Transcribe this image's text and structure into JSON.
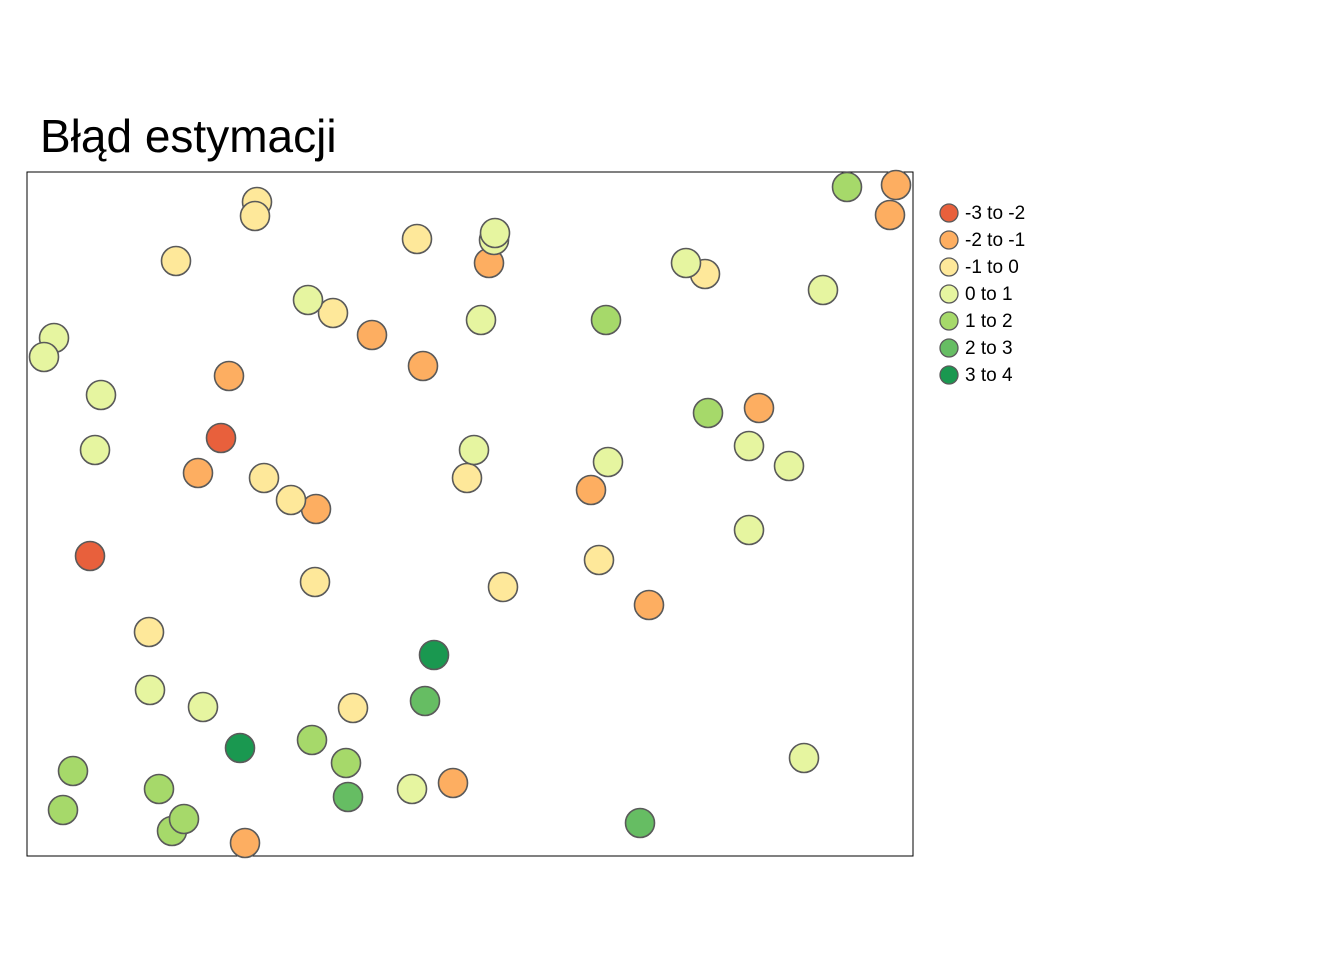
{
  "chart_data": {
    "type": "scatter",
    "title": "Błąd estymacji",
    "xlim": [
      0,
      886
    ],
    "ylim": [
      0,
      684
    ],
    "series": [
      {
        "name": "-3 to -2",
        "color": "#e8603c",
        "x": [
          194,
          63
        ],
        "y": [
          418,
          300
        ]
      },
      {
        "name": "-2 to -1",
        "color": "#fdae61",
        "x": [
          869,
          863,
          462,
          345,
          396,
          202,
          732,
          171,
          564,
          289,
          622,
          426,
          218
        ],
        "y": [
          671,
          641,
          593,
          521,
          490,
          480,
          448,
          383,
          366,
          347,
          251,
          73,
          13
        ]
      },
      {
        "name": "-1 to 0",
        "color": "#fee89a",
        "x": [
          230,
          228,
          390,
          149,
          678,
          306,
          237,
          440,
          264,
          572,
          288,
          476,
          122,
          326
        ],
        "y": [
          654,
          640,
          617,
          595,
          582,
          543,
          378,
          378,
          356,
          296,
          274,
          269,
          224,
          148
        ]
      },
      {
        "name": "0 to 1",
        "color": "#e6f5a0",
        "x": [
          467,
          468,
          659,
          796,
          281,
          454,
          27,
          17,
          74,
          68,
          722,
          447,
          581,
          762,
          722,
          123,
          176,
          777,
          385
        ],
        "y": [
          616,
          623,
          593,
          566,
          556,
          536,
          518,
          499,
          461,
          406,
          410,
          406,
          394,
          390,
          326,
          166,
          149,
          98,
          67
        ]
      },
      {
        "name": "1 to 2",
        "color": "#a6d96a",
        "x": [
          820,
          579,
          681,
          285,
          319,
          46,
          132,
          36,
          145,
          157
        ],
        "y": [
          669,
          536,
          443,
          116,
          93,
          85,
          67,
          46,
          25,
          37
        ]
      },
      {
        "name": "2 to 3",
        "color": "#66bd63",
        "x": [
          398,
          321,
          613
        ],
        "y": [
          155,
          59,
          33
        ]
      },
      {
        "name": "3 to 4",
        "color": "#1a9850",
        "x": [
          407,
          213
        ],
        "y": [
          201,
          108
        ]
      }
    ]
  }
}
